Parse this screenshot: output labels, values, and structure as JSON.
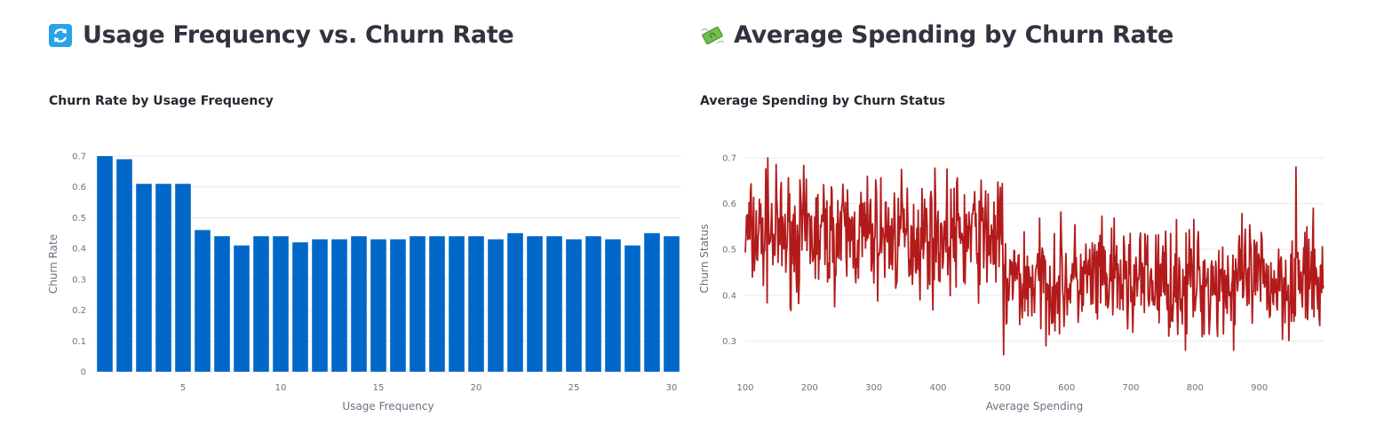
{
  "left": {
    "heading": "Usage Frequency vs. Churn Rate",
    "icon": "refresh-arrows-icon",
    "chart_title": "Churn Rate by Usage Frequency"
  },
  "right": {
    "heading": "Average Spending by Churn Rate",
    "icon": "money-with-wings-icon",
    "chart_title": "Average Spending by Churn Status"
  },
  "chart_data": [
    {
      "type": "bar",
      "title": "Churn Rate by Usage Frequency",
      "xlabel": "Usage Frequency",
      "ylabel": "Churn Rate",
      "x": [
        1,
        2,
        3,
        4,
        5,
        6,
        7,
        8,
        9,
        10,
        11,
        12,
        13,
        14,
        15,
        16,
        17,
        18,
        19,
        20,
        21,
        22,
        23,
        24,
        25,
        26,
        27,
        28,
        29,
        30
      ],
      "values": [
        0.7,
        0.69,
        0.61,
        0.61,
        0.61,
        0.46,
        0.44,
        0.41,
        0.44,
        0.44,
        0.42,
        0.43,
        0.43,
        0.44,
        0.43,
        0.43,
        0.44,
        0.44,
        0.44,
        0.44,
        0.43,
        0.45,
        0.44,
        0.44,
        0.43,
        0.44,
        0.43,
        0.41,
        0.45,
        0.44
      ],
      "xlim": [
        0.5,
        30.5
      ],
      "ylim": [
        0,
        0.7
      ],
      "xticks": [
        5,
        10,
        15,
        20,
        25,
        30
      ],
      "yticks": [
        0,
        0.1,
        0.2,
        0.3,
        0.4,
        0.5,
        0.6,
        0.7
      ],
      "grid": true,
      "color": "#0068c9"
    },
    {
      "type": "line",
      "title": "Average Spending by Churn Status",
      "xlabel": "Average Spending",
      "ylabel": "Churn Status",
      "x_range": [
        100,
        1000
      ],
      "xlim": [
        100,
        1000
      ],
      "ylim": [
        0.26,
        0.7
      ],
      "xticks": [
        100,
        200,
        300,
        400,
        500,
        600,
        700,
        800,
        900
      ],
      "yticks": [
        0.3,
        0.4,
        0.5,
        0.6,
        0.7
      ],
      "grid": true,
      "color": "#b31b1b",
      "segments": [
        {
          "x_range": [
            100,
            500
          ],
          "mean": 0.53,
          "spread": 0.14
        },
        {
          "x_range": [
            500,
            1000
          ],
          "mean": 0.43,
          "spread": 0.13
        }
      ],
      "notable_points": [
        {
          "x": 135,
          "y": 0.7
        },
        {
          "x": 502,
          "y": 0.27
        },
        {
          "x": 785,
          "y": 0.28
        },
        {
          "x": 860,
          "y": 0.28
        },
        {
          "x": 957,
          "y": 0.68
        }
      ]
    }
  ]
}
